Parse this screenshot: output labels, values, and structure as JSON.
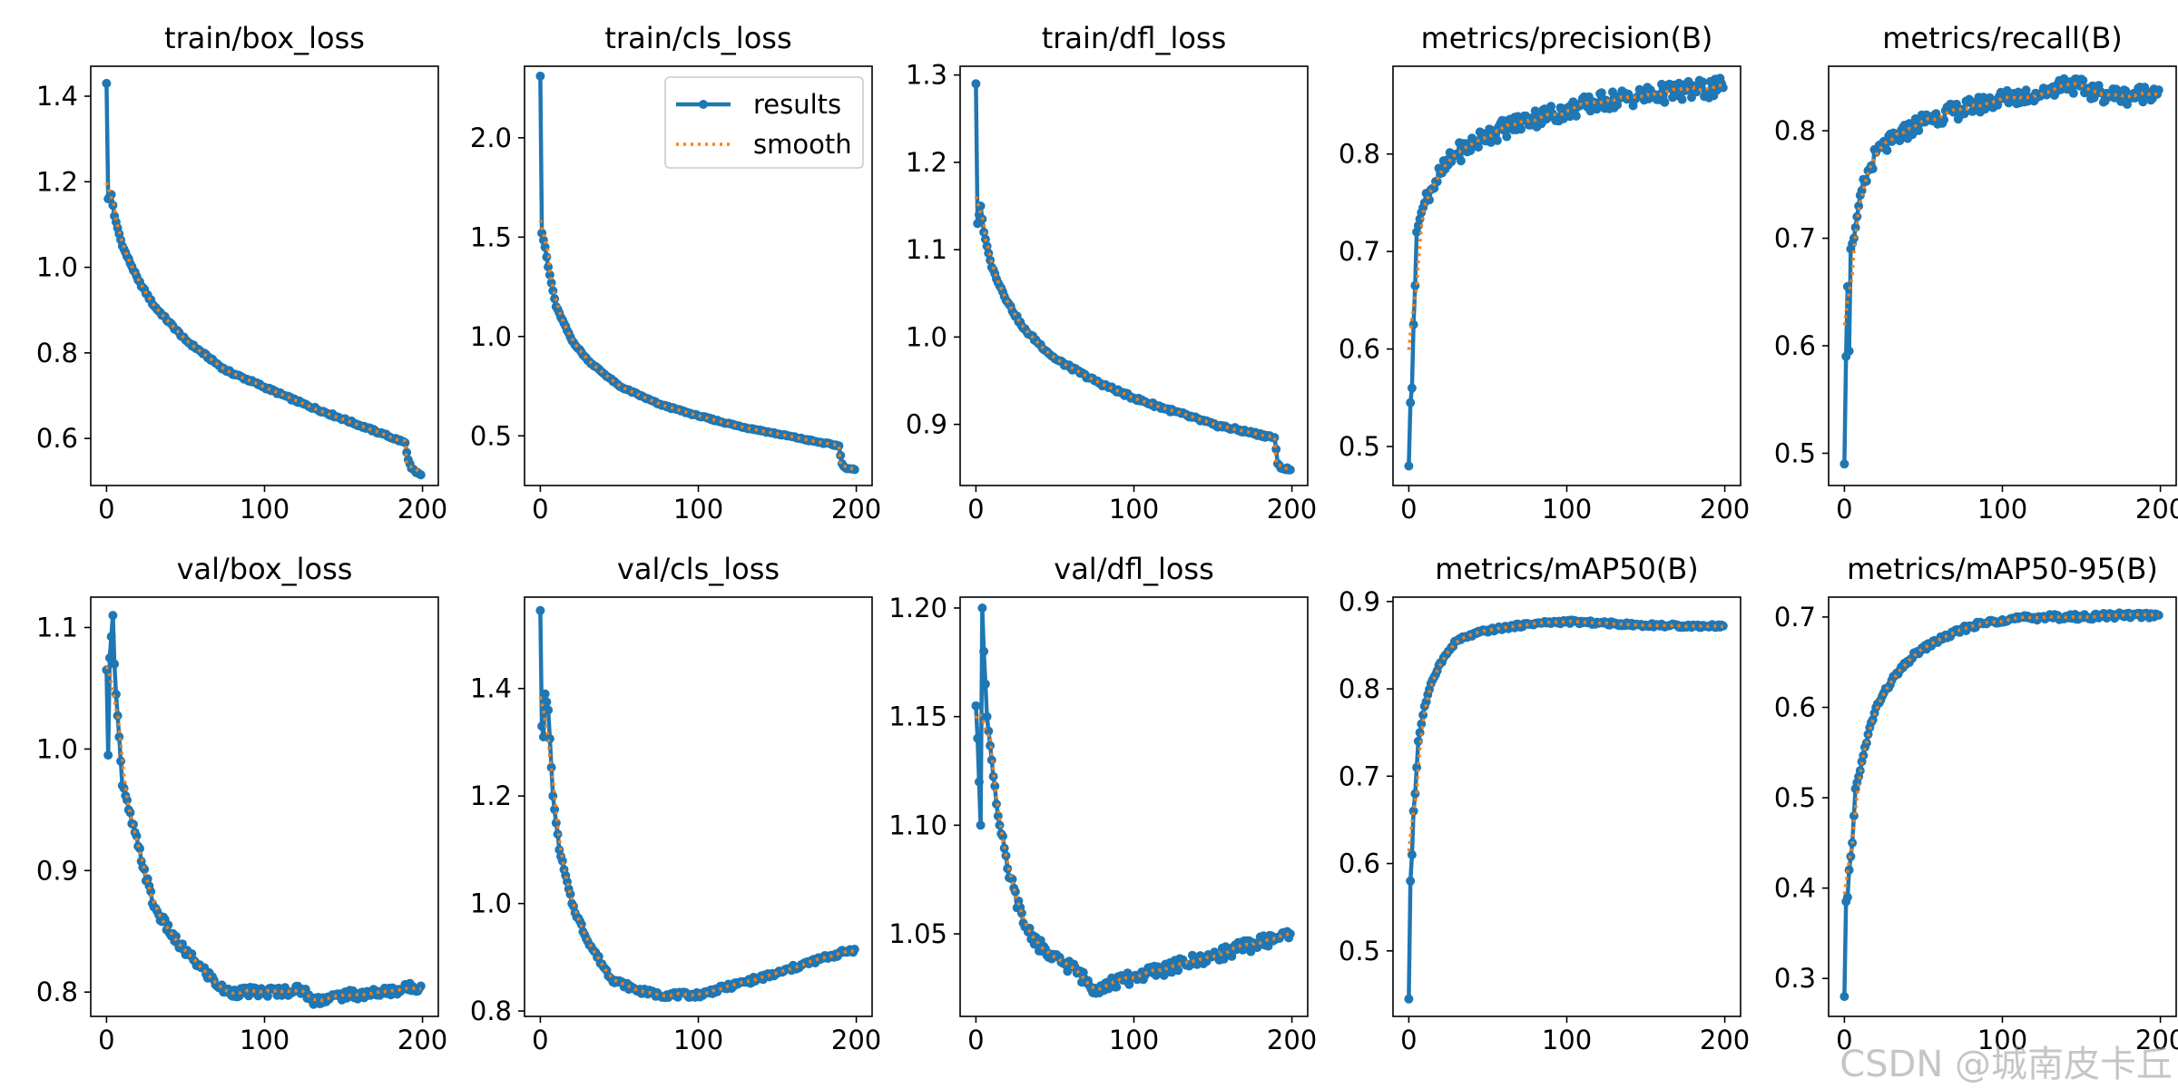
{
  "watermark": "CSDN @城南皮卡丘",
  "colors": {
    "results": "#1f77b4",
    "smooth": "#ff7f0e",
    "axis": "#000000"
  },
  "legend": {
    "results": "results",
    "smooth": "smooth"
  },
  "chart_data": [
    {
      "type": "line",
      "title": "train/box_loss",
      "xlim": [
        -10,
        210
      ],
      "ylim": [
        0.49,
        1.47
      ],
      "xticks": [
        0,
        100,
        200
      ],
      "yticks": [
        0.6,
        0.8,
        1.0,
        1.2,
        1.4
      ],
      "ytick_labels": [
        "0.6",
        "0.8",
        "1.0",
        "1.2",
        "1.4"
      ],
      "legend": false,
      "drop_at": 190,
      "keypoints": [
        [
          0,
          1.43
        ],
        [
          1,
          1.16
        ],
        [
          3,
          1.17
        ],
        [
          5,
          1.12
        ],
        [
          10,
          1.05
        ],
        [
          20,
          0.97
        ],
        [
          30,
          0.91
        ],
        [
          50,
          0.83
        ],
        [
          75,
          0.76
        ],
        [
          100,
          0.72
        ],
        [
          125,
          0.68
        ],
        [
          150,
          0.645
        ],
        [
          175,
          0.61
        ],
        [
          189,
          0.59
        ],
        [
          191,
          0.55
        ],
        [
          193,
          0.53
        ],
        [
          196,
          0.52
        ],
        [
          199,
          0.515
        ]
      ],
      "noise": 0.003
    },
    {
      "type": "line",
      "title": "train/cls_loss",
      "xlim": [
        -10,
        210
      ],
      "ylim": [
        0.25,
        2.36
      ],
      "xticks": [
        0,
        100,
        200
      ],
      "yticks": [
        0.5,
        1.0,
        1.5,
        2.0
      ],
      "ytick_labels": [
        "0.5",
        "1.0",
        "1.5",
        "2.0"
      ],
      "legend": true,
      "drop_at": 190,
      "keypoints": [
        [
          0,
          2.31
        ],
        [
          1,
          1.52
        ],
        [
          3,
          1.45
        ],
        [
          5,
          1.35
        ],
        [
          10,
          1.15
        ],
        [
          20,
          0.98
        ],
        [
          30,
          0.88
        ],
        [
          50,
          0.75
        ],
        [
          75,
          0.66
        ],
        [
          100,
          0.6
        ],
        [
          125,
          0.55
        ],
        [
          150,
          0.51
        ],
        [
          175,
          0.47
        ],
        [
          189,
          0.45
        ],
        [
          191,
          0.36
        ],
        [
          193,
          0.34
        ],
        [
          199,
          0.33
        ]
      ],
      "noise": 0.004
    },
    {
      "type": "line",
      "title": "train/dfl_loss",
      "xlim": [
        -10,
        210
      ],
      "ylim": [
        0.83,
        1.31
      ],
      "xticks": [
        0,
        100,
        200
      ],
      "yticks": [
        0.9,
        1.0,
        1.1,
        1.2,
        1.3
      ],
      "ytick_labels": [
        "0.9",
        "1.0",
        "1.1",
        "1.2",
        "1.3"
      ],
      "legend": false,
      "drop_at": 190,
      "keypoints": [
        [
          0,
          1.29
        ],
        [
          1,
          1.13
        ],
        [
          3,
          1.15
        ],
        [
          5,
          1.12
        ],
        [
          10,
          1.08
        ],
        [
          20,
          1.04
        ],
        [
          30,
          1.01
        ],
        [
          50,
          0.975
        ],
        [
          75,
          0.95
        ],
        [
          100,
          0.93
        ],
        [
          125,
          0.915
        ],
        [
          150,
          0.9
        ],
        [
          175,
          0.89
        ],
        [
          189,
          0.885
        ],
        [
          191,
          0.855
        ],
        [
          193,
          0.85
        ],
        [
          199,
          0.848
        ]
      ],
      "noise": 0.002
    },
    {
      "type": "line",
      "title": "metrics/precision(B)",
      "xlim": [
        -10,
        210
      ],
      "ylim": [
        0.46,
        0.89
      ],
      "xticks": [
        0,
        100,
        200
      ],
      "yticks": [
        0.5,
        0.6,
        0.7,
        0.8
      ],
      "ytick_labels": [
        "0.5",
        "0.6",
        "0.7",
        "0.8"
      ],
      "legend": false,
      "drop_at": null,
      "keypoints": [
        [
          0,
          0.48
        ],
        [
          1,
          0.545
        ],
        [
          2,
          0.56
        ],
        [
          3,
          0.625
        ],
        [
          4,
          0.665
        ],
        [
          5,
          0.72
        ],
        [
          8,
          0.74
        ],
        [
          12,
          0.76
        ],
        [
          20,
          0.78
        ],
        [
          30,
          0.8
        ],
        [
          50,
          0.82
        ],
        [
          75,
          0.835
        ],
        [
          100,
          0.845
        ],
        [
          125,
          0.855
        ],
        [
          150,
          0.86
        ],
        [
          175,
          0.865
        ],
        [
          199,
          0.868
        ]
      ],
      "noise": 0.01
    },
    {
      "type": "line",
      "title": "metrics/recall(B)",
      "xlim": [
        -10,
        210
      ],
      "ylim": [
        0.47,
        0.86
      ],
      "xticks": [
        0,
        100,
        200
      ],
      "yticks": [
        0.5,
        0.6,
        0.7,
        0.8
      ],
      "ytick_labels": [
        "0.5",
        "0.6",
        "0.7",
        "0.8"
      ],
      "legend": false,
      "drop_at": null,
      "keypoints": [
        [
          0,
          0.49
        ],
        [
          1,
          0.59
        ],
        [
          2,
          0.655
        ],
        [
          3,
          0.595
        ],
        [
          4,
          0.69
        ],
        [
          6,
          0.7
        ],
        [
          10,
          0.74
        ],
        [
          20,
          0.78
        ],
        [
          30,
          0.79
        ],
        [
          50,
          0.81
        ],
        [
          75,
          0.82
        ],
        [
          100,
          0.83
        ],
        [
          125,
          0.835
        ],
        [
          140,
          0.845
        ],
        [
          160,
          0.835
        ],
        [
          180,
          0.832
        ],
        [
          199,
          0.838
        ]
      ],
      "noise": 0.008
    },
    {
      "type": "line",
      "title": "val/box_loss",
      "xlim": [
        -10,
        210
      ],
      "ylim": [
        0.78,
        1.125
      ],
      "xticks": [
        0,
        100,
        200
      ],
      "yticks": [
        0.8,
        0.9,
        1.0,
        1.1
      ],
      "ytick_labels": [
        "0.8",
        "0.9",
        "1.0",
        "1.1"
      ],
      "legend": false,
      "drop_at": null,
      "keypoints": [
        [
          0,
          1.065
        ],
        [
          1,
          0.995
        ],
        [
          2,
          1.075
        ],
        [
          4,
          1.11
        ],
        [
          5,
          1.07
        ],
        [
          6,
          1.045
        ],
        [
          8,
          1.01
        ],
        [
          10,
          0.97
        ],
        [
          20,
          0.92
        ],
        [
          30,
          0.87
        ],
        [
          45,
          0.84
        ],
        [
          60,
          0.82
        ],
        [
          75,
          0.8
        ],
        [
          100,
          0.8
        ],
        [
          125,
          0.802
        ],
        [
          130,
          0.793
        ],
        [
          150,
          0.797
        ],
        [
          175,
          0.8
        ],
        [
          199,
          0.805
        ]
      ],
      "noise": 0.004
    },
    {
      "type": "line",
      "title": "val/cls_loss",
      "xlim": [
        -10,
        210
      ],
      "ylim": [
        0.79,
        1.57
      ],
      "xticks": [
        0,
        100,
        200
      ],
      "yticks": [
        0.8,
        1.0,
        1.2,
        1.4
      ],
      "ytick_labels": [
        "0.8",
        "1.0",
        "1.2",
        "1.4"
      ],
      "legend": false,
      "drop_at": null,
      "keypoints": [
        [
          0,
          1.545
        ],
        [
          1,
          1.33
        ],
        [
          2,
          1.31
        ],
        [
          3,
          1.39
        ],
        [
          5,
          1.36
        ],
        [
          8,
          1.2
        ],
        [
          12,
          1.1
        ],
        [
          20,
          1.0
        ],
        [
          30,
          0.93
        ],
        [
          45,
          0.86
        ],
        [
          60,
          0.84
        ],
        [
          75,
          0.83
        ],
        [
          100,
          0.83
        ],
        [
          125,
          0.85
        ],
        [
          150,
          0.87
        ],
        [
          175,
          0.895
        ],
        [
          199,
          0.915
        ]
      ],
      "noise": 0.005
    },
    {
      "type": "line",
      "title": "val/dfl_loss",
      "xlim": [
        -10,
        210
      ],
      "ylim": [
        1.012,
        1.205
      ],
      "xticks": [
        0,
        100,
        200
      ],
      "yticks": [
        1.05,
        1.1,
        1.15,
        1.2
      ],
      "ytick_labels": [
        "1.05",
        "1.10",
        "1.15",
        "1.20"
      ],
      "legend": false,
      "drop_at": null,
      "keypoints": [
        [
          0,
          1.155
        ],
        [
          1,
          1.14
        ],
        [
          3,
          1.1
        ],
        [
          4,
          1.2
        ],
        [
          5,
          1.18
        ],
        [
          7,
          1.15
        ],
        [
          10,
          1.13
        ],
        [
          15,
          1.1
        ],
        [
          20,
          1.08
        ],
        [
          30,
          1.055
        ],
        [
          45,
          1.04
        ],
        [
          60,
          1.035
        ],
        [
          75,
          1.025
        ],
        [
          100,
          1.03
        ],
        [
          125,
          1.035
        ],
        [
          150,
          1.04
        ],
        [
          175,
          1.045
        ],
        [
          199,
          1.05
        ]
      ],
      "noise": 0.003
    },
    {
      "type": "line",
      "title": "metrics/mAP50(B)",
      "xlim": [
        -10,
        210
      ],
      "ylim": [
        0.425,
        0.905
      ],
      "xticks": [
        0,
        100,
        200
      ],
      "yticks": [
        0.5,
        0.6,
        0.7,
        0.8,
        0.9
      ],
      "ytick_labels": [
        "0.5",
        "0.6",
        "0.7",
        "0.8",
        "0.9"
      ],
      "legend": false,
      "drop_at": null,
      "keypoints": [
        [
          0,
          0.445
        ],
        [
          1,
          0.58
        ],
        [
          2,
          0.61
        ],
        [
          3,
          0.66
        ],
        [
          4,
          0.68
        ],
        [
          6,
          0.74
        ],
        [
          10,
          0.78
        ],
        [
          15,
          0.81
        ],
        [
          20,
          0.83
        ],
        [
          30,
          0.855
        ],
        [
          45,
          0.865
        ],
        [
          60,
          0.87
        ],
        [
          80,
          0.875
        ],
        [
          100,
          0.877
        ],
        [
          125,
          0.875
        ],
        [
          150,
          0.873
        ],
        [
          175,
          0.872
        ],
        [
          199,
          0.872
        ]
      ],
      "noise": 0.002
    },
    {
      "type": "line",
      "title": "metrics/mAP50-95(B)",
      "xlim": [
        -10,
        210
      ],
      "ylim": [
        0.258,
        0.722
      ],
      "xticks": [
        0,
        100,
        200
      ],
      "yticks": [
        0.3,
        0.4,
        0.5,
        0.6,
        0.7
      ],
      "ytick_labels": [
        "0.3",
        "0.4",
        "0.5",
        "0.6",
        "0.7"
      ],
      "legend": false,
      "drop_at": null,
      "keypoints": [
        [
          0,
          0.28
        ],
        [
          1,
          0.385
        ],
        [
          2,
          0.39
        ],
        [
          3,
          0.42
        ],
        [
          5,
          0.45
        ],
        [
          7,
          0.51
        ],
        [
          10,
          0.53
        ],
        [
          15,
          0.57
        ],
        [
          20,
          0.6
        ],
        [
          30,
          0.63
        ],
        [
          45,
          0.66
        ],
        [
          60,
          0.675
        ],
        [
          80,
          0.69
        ],
        [
          100,
          0.697
        ],
        [
          125,
          0.7
        ],
        [
          150,
          0.7
        ],
        [
          175,
          0.702
        ],
        [
          199,
          0.702
        ]
      ],
      "noise": 0.003
    }
  ]
}
